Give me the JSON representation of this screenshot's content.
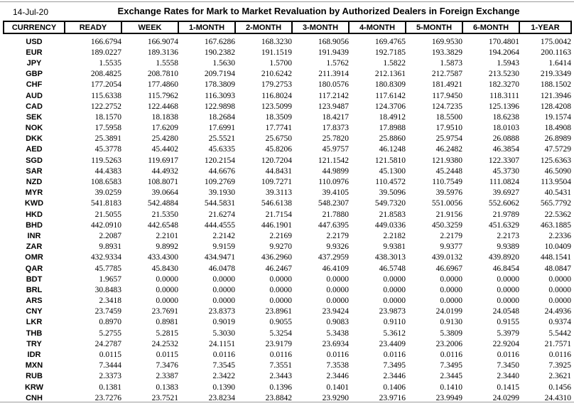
{
  "page": {
    "date": "14-Jul-20",
    "title": "Exchange Rates for Mark to Market Revaluation by Authorized Dealers in Foreign Exchange"
  },
  "table": {
    "columns": [
      "CURRENCY",
      "READY",
      "WEEK",
      "1-MONTH",
      "2-MONTH",
      "3-MONTH",
      "4-MONTH",
      "5-MONTH",
      "6-MONTH",
      "1-YEAR"
    ],
    "rows": [
      {
        "currency": "USD",
        "values": [
          "166.6794",
          "166.9074",
          "167.6286",
          "168.3230",
          "168.9056",
          "169.4765",
          "169.9530",
          "170.4801",
          "175.0042"
        ]
      },
      {
        "currency": "EUR",
        "values": [
          "189.0227",
          "189.3136",
          "190.2382",
          "191.1519",
          "191.9439",
          "192.7185",
          "193.3829",
          "194.2064",
          "200.1163"
        ]
      },
      {
        "currency": "JPY",
        "values": [
          "1.5535",
          "1.5558",
          "1.5630",
          "1.5700",
          "1.5762",
          "1.5822",
          "1.5873",
          "1.5943",
          "1.6414"
        ]
      },
      {
        "currency": "GBP",
        "values": [
          "208.4825",
          "208.7810",
          "209.7194",
          "210.6242",
          "211.3914",
          "212.1361",
          "212.7587",
          "213.5230",
          "219.3349"
        ]
      },
      {
        "currency": "CHF",
        "values": [
          "177.2054",
          "177.4860",
          "178.3809",
          "179.2753",
          "180.0576",
          "180.8309",
          "181.4921",
          "182.3270",
          "188.1502"
        ]
      },
      {
        "currency": "AUD",
        "values": [
          "115.6338",
          "115.7962",
          "116.3093",
          "116.8024",
          "117.2142",
          "117.6142",
          "117.9450",
          "118.3111",
          "121.3946"
        ]
      },
      {
        "currency": "CAD",
        "values": [
          "122.2752",
          "122.4468",
          "122.9898",
          "123.5099",
          "123.9487",
          "124.3706",
          "124.7235",
          "125.1396",
          "128.4208"
        ]
      },
      {
        "currency": "SEK",
        "values": [
          "18.1570",
          "18.1838",
          "18.2684",
          "18.3509",
          "18.4217",
          "18.4912",
          "18.5500",
          "18.6238",
          "19.1574"
        ]
      },
      {
        "currency": "NOK",
        "values": [
          "17.5958",
          "17.6209",
          "17.6991",
          "17.7741",
          "17.8373",
          "17.8988",
          "17.9510",
          "18.0103",
          "18.4908"
        ]
      },
      {
        "currency": "DKK",
        "values": [
          "25.3891",
          "25.4280",
          "25.5521",
          "25.6750",
          "25.7820",
          "25.8860",
          "25.9754",
          "26.0888",
          "26.8989"
        ]
      },
      {
        "currency": "AED",
        "values": [
          "45.3778",
          "45.4402",
          "45.6335",
          "45.8206",
          "45.9757",
          "46.1248",
          "46.2482",
          "46.3854",
          "47.5729"
        ]
      },
      {
        "currency": "SGD",
        "values": [
          "119.5263",
          "119.6917",
          "120.2154",
          "120.7204",
          "121.1542",
          "121.5810",
          "121.9380",
          "122.3307",
          "125.6363"
        ]
      },
      {
        "currency": "SAR",
        "values": [
          "44.4383",
          "44.4932",
          "44.6676",
          "44.8431",
          "44.9899",
          "45.1300",
          "45.2448",
          "45.3730",
          "46.5090"
        ]
      },
      {
        "currency": "NZD",
        "values": [
          "108.6583",
          "108.8071",
          "109.2769",
          "109.7271",
          "110.0976",
          "110.4572",
          "110.7549",
          "111.0824",
          "113.9504"
        ]
      },
      {
        "currency": "MYR",
        "values": [
          "39.0259",
          "39.0664",
          "39.1930",
          "39.3113",
          "39.4105",
          "39.5096",
          "39.5976",
          "39.6927",
          "40.5431"
        ]
      },
      {
        "currency": "KWD",
        "values": [
          "541.8183",
          "542.4884",
          "544.5831",
          "546.6138",
          "548.2307",
          "549.7320",
          "551.0056",
          "552.6062",
          "565.7792"
        ]
      },
      {
        "currency": "HKD",
        "values": [
          "21.5055",
          "21.5350",
          "21.6274",
          "21.7154",
          "21.7880",
          "21.8583",
          "21.9156",
          "21.9789",
          "22.5362"
        ]
      },
      {
        "currency": "BHD",
        "values": [
          "442.0910",
          "442.6548",
          "444.4555",
          "446.1901",
          "447.6395",
          "449.0336",
          "450.3259",
          "451.6329",
          "463.1885"
        ]
      },
      {
        "currency": "INR",
        "values": [
          "2.2087",
          "2.2101",
          "2.2142",
          "2.2169",
          "2.2179",
          "2.2182",
          "2.2179",
          "2.2173",
          "2.2336"
        ]
      },
      {
        "currency": "ZAR",
        "values": [
          "9.8931",
          "9.8992",
          "9.9159",
          "9.9270",
          "9.9326",
          "9.9381",
          "9.9377",
          "9.9389",
          "10.0409"
        ]
      },
      {
        "currency": "OMR",
        "values": [
          "432.9334",
          "433.4300",
          "434.9471",
          "436.2960",
          "437.2959",
          "438.3013",
          "439.0132",
          "439.8920",
          "448.1541"
        ]
      },
      {
        "currency": "QAR",
        "values": [
          "45.7785",
          "45.8430",
          "46.0478",
          "46.2467",
          "46.4109",
          "46.5748",
          "46.6967",
          "46.8454",
          "48.0847"
        ]
      },
      {
        "currency": "BDT",
        "values": [
          "1.9657",
          "0.0000",
          "0.0000",
          "0.0000",
          "0.0000",
          "0.0000",
          "0.0000",
          "0.0000",
          "0.0000"
        ]
      },
      {
        "currency": "BRL",
        "values": [
          "30.8483",
          "0.0000",
          "0.0000",
          "0.0000",
          "0.0000",
          "0.0000",
          "0.0000",
          "0.0000",
          "0.0000"
        ]
      },
      {
        "currency": "ARS",
        "values": [
          "2.3418",
          "0.0000",
          "0.0000",
          "0.0000",
          "0.0000",
          "0.0000",
          "0.0000",
          "0.0000",
          "0.0000"
        ]
      },
      {
        "currency": "CNY",
        "values": [
          "23.7459",
          "23.7691",
          "23.8373",
          "23.8961",
          "23.9424",
          "23.9873",
          "24.0199",
          "24.0548",
          "24.4936"
        ]
      },
      {
        "currency": "LKR",
        "values": [
          "0.8970",
          "0.8981",
          "0.9019",
          "0.9055",
          "0.9083",
          "0.9110",
          "0.9130",
          "0.9155",
          "0.9374"
        ]
      },
      {
        "currency": "THB",
        "values": [
          "5.2755",
          "5.2815",
          "5.3030",
          "5.3254",
          "5.3438",
          "5.3612",
          "5.3809",
          "5.3979",
          "5.5442"
        ]
      },
      {
        "currency": "TRY",
        "values": [
          "24.2787",
          "24.2532",
          "24.1151",
          "23.9179",
          "23.6934",
          "23.4409",
          "23.2006",
          "22.9204",
          "21.7571"
        ]
      },
      {
        "currency": "IDR",
        "values": [
          "0.0115",
          "0.0115",
          "0.0116",
          "0.0116",
          "0.0116",
          "0.0116",
          "0.0116",
          "0.0116",
          "0.0116"
        ]
      },
      {
        "currency": "MXN",
        "values": [
          "7.3444",
          "7.3476",
          "7.3545",
          "7.3551",
          "7.3538",
          "7.3495",
          "7.3495",
          "7.3450",
          "7.3925"
        ]
      },
      {
        "currency": "RUB",
        "values": [
          "2.3373",
          "2.3387",
          "2.3422",
          "2.3443",
          "2.3446",
          "2.3446",
          "2.3445",
          "2.3440",
          "2.3621"
        ]
      },
      {
        "currency": "KRW",
        "values": [
          "0.1381",
          "0.1383",
          "0.1390",
          "0.1396",
          "0.1401",
          "0.1406",
          "0.1410",
          "0.1415",
          "0.1456"
        ]
      },
      {
        "currency": "CNH",
        "values": [
          "23.7276",
          "23.7521",
          "23.8234",
          "23.8842",
          "23.9290",
          "23.9716",
          "23.9949",
          "24.0299",
          "24.4310"
        ]
      }
    ]
  }
}
